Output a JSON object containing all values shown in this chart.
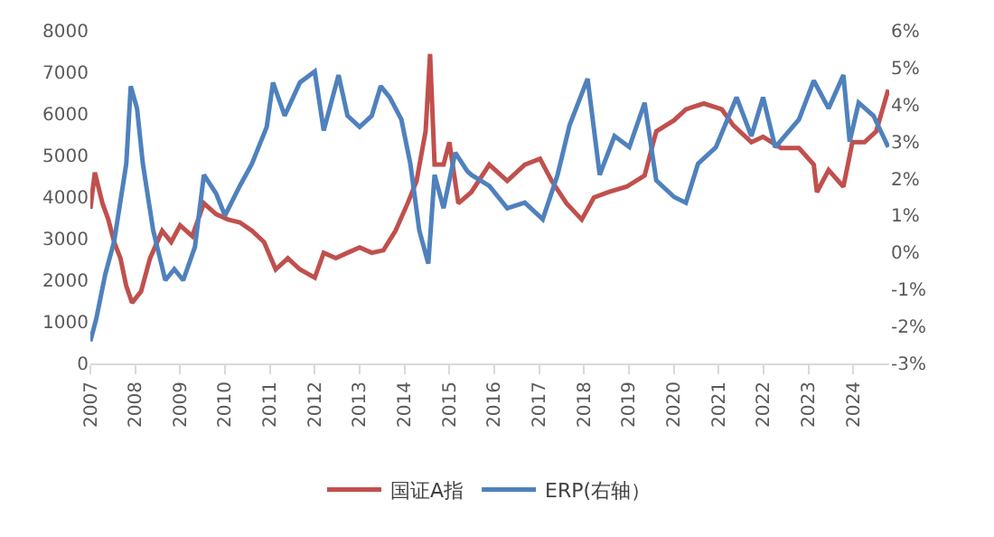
{
  "chart_data": {
    "type": "line",
    "xlabel": null,
    "x": [
      2007.0,
      2007.1,
      2007.27,
      2007.4,
      2007.53,
      2007.67,
      2007.8,
      2007.93,
      2008.13,
      2008.33,
      2008.6,
      2008.8,
      2009.0,
      2009.27,
      2009.53,
      2009.8,
      2010.07,
      2010.33,
      2010.6,
      2010.87,
      2011.13,
      2011.4,
      2011.67,
      2012.0,
      2012.2,
      2012.47,
      2012.73,
      2013.0,
      2013.27,
      2013.53,
      2013.8,
      2014.07,
      2014.27,
      2014.47,
      2014.57,
      2014.67,
      2014.87,
      2015.0,
      2015.2,
      2015.49,
      2015.89,
      2016.29,
      2016.68,
      2017.02,
      2017.28,
      2017.61,
      2017.95,
      2018.22,
      2018.55,
      2018.95,
      2019.35,
      2019.61,
      2020.01,
      2020.27,
      2020.67,
      2021.07,
      2021.33,
      2021.73,
      2021.99,
      2022.39,
      2022.79,
      2023.12,
      2023.19,
      2023.45,
      2023.78,
      2023.98,
      2024.25,
      2024.51,
      2024.78
    ],
    "series": [
      {
        "name": "国证A指",
        "color": "#c0504d",
        "values": [
          3720,
          4590,
          3850,
          3460,
          2920,
          2530,
          1860,
          1460,
          1730,
          2530,
          3190,
          2920,
          3320,
          3060,
          3850,
          3590,
          3460,
          3390,
          3190,
          2920,
          2260,
          2530,
          2260,
          2060,
          2660,
          2530,
          2660,
          2790,
          2660,
          2720,
          3190,
          3850,
          4390,
          5580,
          7440,
          4780,
          4780,
          5320,
          3850,
          4120,
          4780,
          4390,
          4780,
          4920,
          4390,
          3850,
          3460,
          3990,
          4120,
          4250,
          4520,
          5580,
          5850,
          6110,
          6250,
          6110,
          5720,
          5320,
          5450,
          5180,
          5180,
          4780,
          4120,
          4650,
          4250,
          5320,
          5320,
          5580,
          6580
        ]
      },
      {
        "name": "ERP(右轴）",
        "color": "#4f81bd",
        "axis": "y2",
        "x": [
          2007.0,
          2007.13,
          2007.33,
          2007.53,
          2007.8,
          2007.9,
          2008.04,
          2008.17,
          2008.4,
          2008.67,
          2008.87,
          2009.07,
          2009.33,
          2009.53,
          2009.8,
          2010.0,
          2010.33,
          2010.6,
          2010.93,
          2011.07,
          2011.33,
          2011.67,
          2012.0,
          2012.2,
          2012.53,
          2012.73,
          2013.0,
          2013.27,
          2013.47,
          2013.67,
          2013.93,
          2014.13,
          2014.33,
          2014.53,
          2014.67,
          2014.87,
          2015.13,
          2015.4,
          2015.49,
          2015.89,
          2016.29,
          2016.68,
          2017.08,
          2017.41,
          2017.68,
          2018.08,
          2018.35,
          2018.68,
          2019.01,
          2019.35,
          2019.61,
          2020.01,
          2020.27,
          2020.54,
          2020.94,
          2021.4,
          2021.73,
          2021.99,
          2022.26,
          2022.79,
          2023.12,
          2023.45,
          2023.78,
          2023.92,
          2024.12,
          2024.45,
          2024.78
        ],
        "values": [
          -2.4,
          -1.8,
          -0.6,
          0.3,
          2.4,
          4.5,
          3.9,
          2.4,
          0.6,
          -0.75,
          -0.45,
          -0.75,
          0.15,
          2.1,
          1.6,
          1.0,
          1.8,
          2.4,
          3.4,
          4.6,
          3.7,
          4.6,
          4.9,
          3.3,
          4.8,
          3.7,
          3.4,
          3.7,
          4.5,
          4.2,
          3.6,
          2.4,
          0.6,
          -0.3,
          2.1,
          1.2,
          2.7,
          2.2,
          2.1,
          1.8,
          1.2,
          1.35,
          0.9,
          2.1,
          3.45,
          4.7,
          2.1,
          3.15,
          2.85,
          4.05,
          1.95,
          1.5,
          1.35,
          2.4,
          2.85,
          4.2,
          3.15,
          4.2,
          2.85,
          3.6,
          4.65,
          3.9,
          4.8,
          3.0,
          4.05,
          3.7,
          2.85
        ]
      }
    ],
    "xlim": [
      2007,
      2024.8
    ],
    "xticks": [
      2007,
      2008,
      2009,
      2010,
      2011,
      2012,
      2013,
      2014,
      2015,
      2016,
      2017,
      2018,
      2019,
      2020,
      2021,
      2022,
      2023,
      2024
    ],
    "ylim": [
      0,
      8000
    ],
    "yticks": [
      0,
      1000,
      2000,
      3000,
      4000,
      5000,
      6000,
      7000,
      8000
    ],
    "y2lim": [
      -3,
      6
    ],
    "y2ticks": [
      {
        "value": -3,
        "label": "-3%"
      },
      {
        "value": -2,
        "label": "-2%"
      },
      {
        "value": -1,
        "label": "-1%"
      },
      {
        "value": 0,
        "label": "0%"
      },
      {
        "value": 1,
        "label": "1%"
      },
      {
        "value": 2,
        "label": "2%"
      },
      {
        "value": 3,
        "label": "3%"
      },
      {
        "value": 4,
        "label": "4%"
      },
      {
        "value": 5,
        "label": "5%"
      },
      {
        "value": 6,
        "label": "6%"
      }
    ],
    "legend": "bottom",
    "marker": "none",
    "line_style": "solid"
  }
}
